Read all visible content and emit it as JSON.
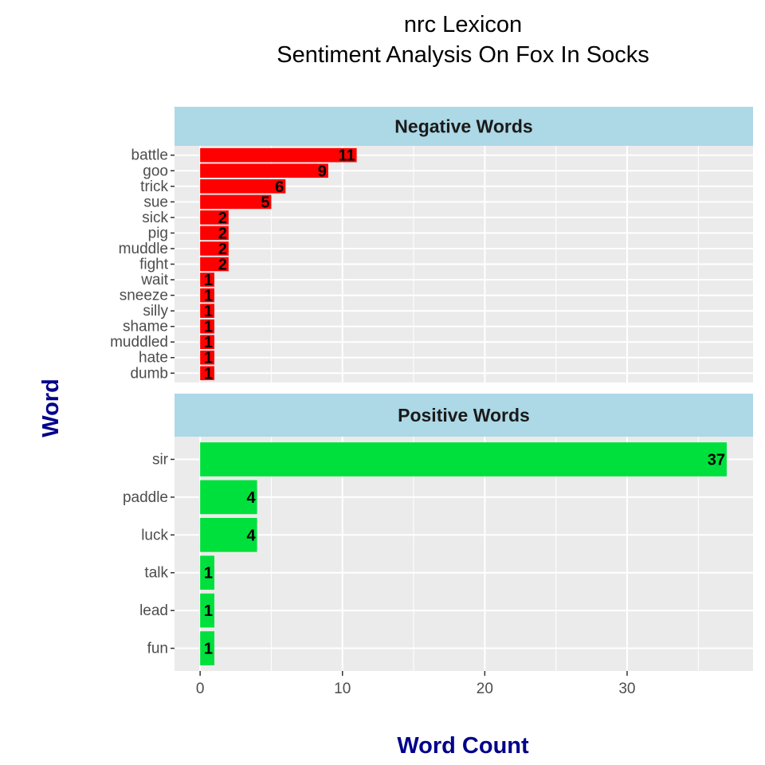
{
  "chart_data": {
    "type": "bar",
    "orientation": "horizontal",
    "title_line1": "nrc Lexicon",
    "title_line2": "Sentiment Analysis On Fox In Socks",
    "xlabel": "Word Count",
    "ylabel": "Word",
    "xlim": [
      -1.8,
      38.85
    ],
    "x_ticks": [
      0,
      10,
      20,
      30
    ],
    "grid": true,
    "facet_strip_color": "#add8e6",
    "panel_background": "#ebebeb",
    "axis_title_color": "#00008b",
    "panels": [
      {
        "name": "Negative Words",
        "bar_color": "#ff0000",
        "categories": [
          "battle",
          "goo",
          "trick",
          "sue",
          "sick",
          "pig",
          "muddle",
          "fight",
          "wait",
          "sneeze",
          "silly",
          "shame",
          "muddled",
          "hate",
          "dumb"
        ],
        "values": [
          11,
          9,
          6,
          5,
          2,
          2,
          2,
          2,
          1,
          1,
          1,
          1,
          1,
          1,
          1
        ]
      },
      {
        "name": "Positive Words",
        "bar_color": "#00e03c",
        "categories": [
          "sir",
          "paddle",
          "luck",
          "talk",
          "lead",
          "fun"
        ],
        "values": [
          37,
          4,
          4,
          1,
          1,
          1
        ]
      }
    ]
  }
}
